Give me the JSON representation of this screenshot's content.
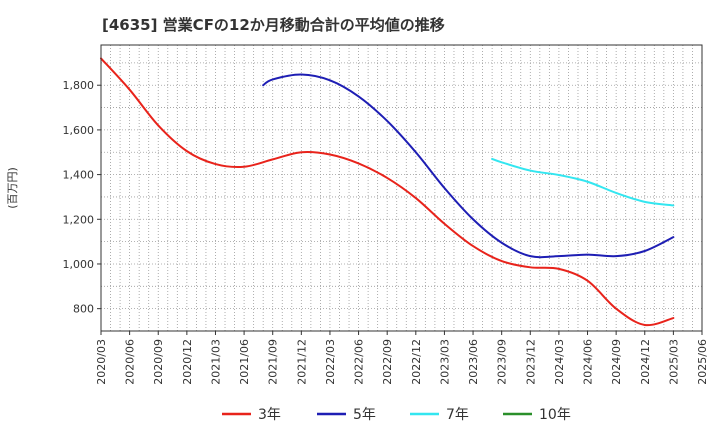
{
  "chart_data": {
    "type": "line",
    "title": "[4635]  営業CFの12か月移動合計の平均値の推移",
    "ylabel": "(百万円)",
    "xlabel": "",
    "ylim": [
      700,
      1980
    ],
    "yticks": [
      800,
      1000,
      1200,
      1400,
      1600,
      1800
    ],
    "ytick_labels": [
      "800",
      "1,000",
      "1,200",
      "1,400",
      "1,600",
      "1,800"
    ],
    "xrange": [
      "2020/03",
      "2025/06"
    ],
    "xtick_labels": [
      "2020/03",
      "2020/06",
      "2020/09",
      "2020/12",
      "2021/03",
      "2021/06",
      "2021/09",
      "2021/12",
      "2022/03",
      "2022/06",
      "2022/09",
      "2022/12",
      "2023/03",
      "2023/06",
      "2023/09",
      "2023/12",
      "2024/03",
      "2024/06",
      "2024/09",
      "2024/12",
      "2025/03",
      "2025/06"
    ],
    "grid": true,
    "legend_position": "bottom",
    "series": [
      {
        "name": "3年",
        "color": "#e8231b",
        "x": [
          "2020/03",
          "2020/06",
          "2020/09",
          "2020/12",
          "2021/03",
          "2021/06",
          "2021/09",
          "2021/12",
          "2022/03",
          "2022/06",
          "2022/09",
          "2022/12",
          "2023/03",
          "2023/06",
          "2023/09",
          "2023/12",
          "2024/03",
          "2024/06",
          "2024/09",
          "2024/12",
          "2025/03"
        ],
        "values": [
          1920,
          1780,
          1620,
          1505,
          1447,
          1435,
          1468,
          1500,
          1490,
          1450,
          1385,
          1295,
          1180,
          1080,
          1013,
          985,
          978,
          925,
          800,
          727,
          758
        ]
      },
      {
        "name": "5年",
        "color": "#1e1eb4",
        "x": [
          "2021/08",
          "2021/09",
          "2021/12",
          "2022/03",
          "2022/06",
          "2022/09",
          "2022/12",
          "2023/03",
          "2023/06",
          "2023/09",
          "2023/12",
          "2024/03",
          "2024/06",
          "2024/09",
          "2024/12",
          "2025/03"
        ],
        "values": [
          1800,
          1826,
          1848,
          1822,
          1750,
          1640,
          1500,
          1340,
          1200,
          1095,
          1035,
          1035,
          1042,
          1035,
          1058,
          1120
        ]
      },
      {
        "name": "7年",
        "color": "#33e6f0",
        "x": [
          "2023/08",
          "2023/09",
          "2023/12",
          "2024/03",
          "2024/06",
          "2024/09",
          "2024/12",
          "2025/03"
        ],
        "values": [
          1470,
          1455,
          1418,
          1398,
          1368,
          1318,
          1278,
          1262
        ]
      },
      {
        "name": "10年",
        "color": "#2a8f2a",
        "x": [],
        "values": []
      }
    ]
  }
}
